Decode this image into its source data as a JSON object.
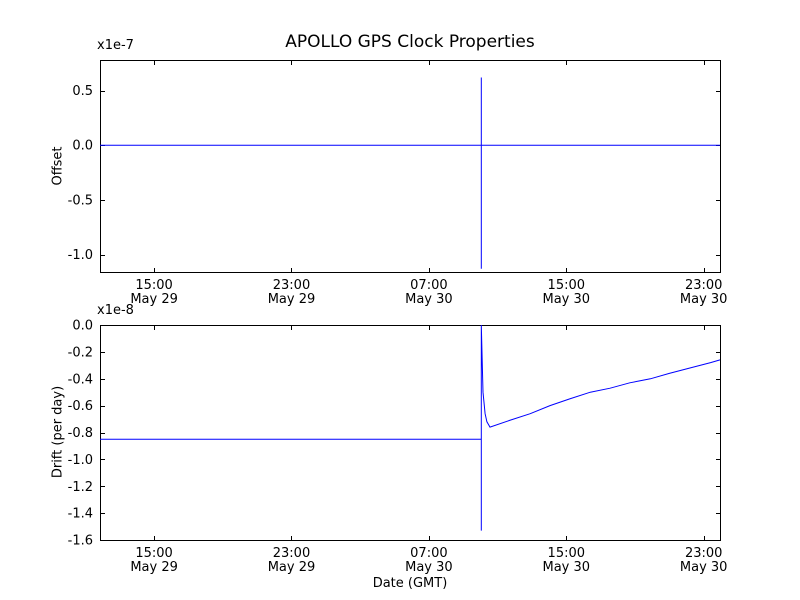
{
  "figure": {
    "title": "APOLLO GPS Clock Properties",
    "xlabel": "Date (GMT)",
    "background_color": "#ffffff",
    "axis_color": "#000000",
    "text_color": "#000000",
    "line_color": "#0000ff"
  },
  "chart_data": [
    {
      "type": "line",
      "subplot": "top",
      "title": "APOLLO GPS Clock Properties",
      "ylabel": "Offset",
      "y_offset_text": "x1e-7",
      "y_units": "1e-7",
      "ylim": [
        -1.16,
        0.78
      ],
      "ytick_values": [
        0.5,
        0.0,
        -0.5,
        -1.0
      ],
      "ytick_labels": [
        "0.5",
        "0.0",
        "-0.5",
        "-1.0"
      ],
      "grid": false,
      "legend": null,
      "x_hours_since": "May 29 00:00 GMT",
      "xlim_hours": [
        11.85,
        47.95
      ],
      "xtick_hours": [
        15,
        23,
        31,
        39,
        47
      ],
      "xtick_labels_time": [
        "15:00",
        "23:00",
        "07:00",
        "15:00",
        "23:00"
      ],
      "xtick_labels_date": [
        "May 29",
        "May 29",
        "May 30",
        "May 30",
        "May 30"
      ],
      "series": [
        {
          "name": "offset",
          "color": "#0000ff",
          "points": [
            [
              11.85,
              0.0
            ],
            [
              34.05,
              0.0
            ],
            [
              34.05,
              0.62
            ],
            [
              34.05,
              -1.13
            ],
            [
              34.05,
              0.0
            ],
            [
              47.95,
              0.0
            ]
          ]
        }
      ],
      "annotation": "Offset flat at 0.0e-7; vertical glitch spike at ~10:00 May 30 spanning +0.62e-7 to -1.13e-7"
    },
    {
      "type": "line",
      "subplot": "bottom",
      "ylabel": "Drift (per day)",
      "y_offset_text": "x1e-8",
      "y_units": "1e-8",
      "xlabel": "Date (GMT)",
      "ylim": [
        -1.6,
        0.0
      ],
      "ytick_values": [
        0.0,
        -0.2,
        -0.4,
        -0.6,
        -0.8,
        -1.0,
        -1.2,
        -1.4,
        -1.6
      ],
      "ytick_labels": [
        "0.0",
        "-0.2",
        "-0.4",
        "-0.6",
        "-0.8",
        "-1.0",
        "-1.2",
        "-1.4",
        "-1.6"
      ],
      "grid": false,
      "legend": null,
      "x_hours_since": "May 29 00:00 GMT",
      "xlim_hours": [
        11.85,
        47.95
      ],
      "xtick_hours": [
        15,
        23,
        31,
        39,
        47
      ],
      "xtick_labels_time": [
        "15:00",
        "23:00",
        "07:00",
        "15:00",
        "23:00"
      ],
      "xtick_labels_date": [
        "May 29",
        "May 29",
        "May 30",
        "May 30",
        "May 30"
      ],
      "series": [
        {
          "name": "drift",
          "color": "#0000ff",
          "points": [
            [
              11.85,
              -0.85
            ],
            [
              34.05,
              -0.85
            ],
            [
              34.05,
              -1.53
            ],
            [
              34.05,
              0.0
            ],
            [
              34.15,
              -0.5
            ],
            [
              34.27,
              -0.66
            ],
            [
              34.38,
              -0.72
            ],
            [
              34.56,
              -0.76
            ],
            [
              35.7,
              -0.71
            ],
            [
              36.9,
              -0.66
            ],
            [
              38.05,
              -0.6
            ],
            [
              39.2,
              -0.55
            ],
            [
              40.4,
              -0.5
            ],
            [
              41.55,
              -0.47
            ],
            [
              42.7,
              -0.43
            ],
            [
              43.9,
              -0.4
            ],
            [
              45.0,
              -0.36
            ],
            [
              46.2,
              -0.32
            ],
            [
              47.4,
              -0.28
            ],
            [
              47.95,
              -0.26
            ]
          ]
        }
      ],
      "annotation": "Drift steady at -0.85e-8/day; glitch spike at ~10:00 May 30 (0.0 to -1.53e-8) then gradual recovery to -0.26e-8 by ~23:55 May 30"
    }
  ]
}
